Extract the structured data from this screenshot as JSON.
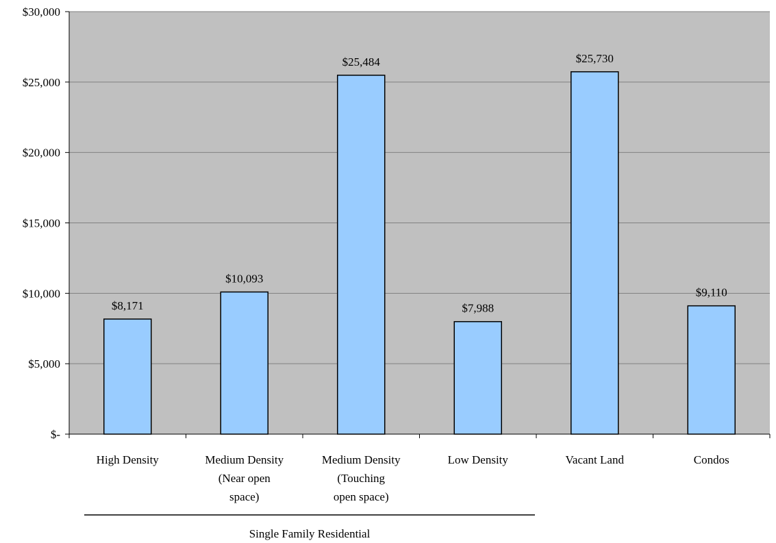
{
  "chart_data": {
    "type": "bar",
    "categories": [
      [
        "High Density"
      ],
      [
        "Medium Density",
        "(Near open",
        "space)"
      ],
      [
        "Medium Density",
        "(Touching",
        "open space)"
      ],
      [
        "Low Density"
      ],
      [
        "Vacant Land"
      ],
      [
        "Condos"
      ]
    ],
    "values": [
      8171,
      10093,
      25484,
      7988,
      25730,
      9110
    ],
    "data_labels": [
      "$8,171",
      "$10,093",
      "$25,484",
      "$7,988",
      "$25,730",
      "$9,110"
    ],
    "ylim": [
      0,
      30000
    ],
    "yticks": [
      0,
      5000,
      10000,
      15000,
      20000,
      25000,
      30000
    ],
    "ytick_labels": [
      "$-",
      "$5,000",
      "$10,000",
      "$15,000",
      "$20,000",
      "$25,000",
      "$30,000"
    ],
    "group_label": "Single Family Residential",
    "group_span": [
      0,
      3
    ],
    "grid": true,
    "colors": {
      "plot_background": "#c0c0c0",
      "bar_fill": "#99ccff",
      "bar_stroke": "#000000",
      "grid": "#808080"
    }
  }
}
